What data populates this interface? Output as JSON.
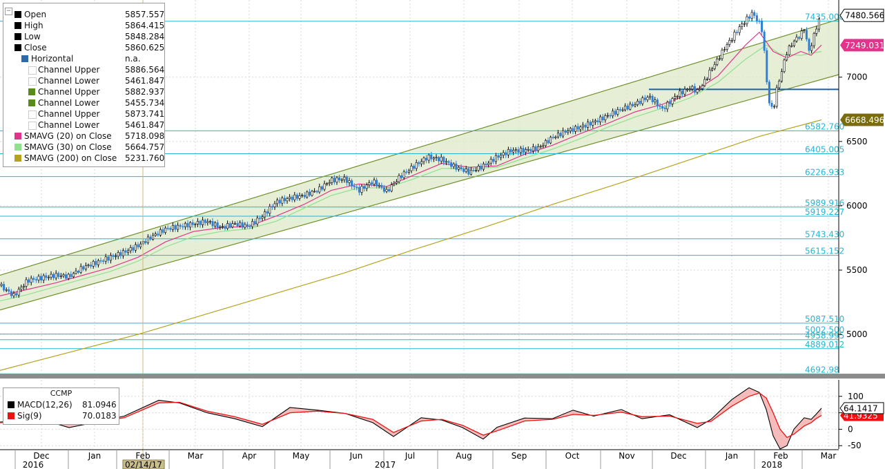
{
  "colors": {
    "price": "#000000",
    "channel_fill": "#dde8c8",
    "channel_line": "#6e8f2a",
    "sma20": "#e0358a",
    "sma30": "#8fe08f",
    "sma200": "#b5a21e",
    "horizontal": "#1f5f9f",
    "level": "#21b6d6",
    "macd": "#000000",
    "signal": "#ee1111",
    "last_price_bg": "#000000",
    "sma20_bg": "#e0358a",
    "sma200_bg": "#7a6b10",
    "signal_bg": "#ee1111"
  },
  "legend": {
    "items": [
      {
        "label": "Open",
        "value": "5857.557",
        "swatch": "#000000"
      },
      {
        "label": "High",
        "value": "5864.415",
        "swatch": "#000000"
      },
      {
        "label": "Low",
        "value": "5848.284",
        "swatch": "#000000"
      },
      {
        "label": "Close",
        "value": "5860.625",
        "swatch": "#000000"
      },
      {
        "label": "Horizontal",
        "value": "n.a.",
        "swatch": "#2f6aa8"
      },
      {
        "label": "Channel Upper",
        "value": "5886.564",
        "swatch": "#ffffff"
      },
      {
        "label": "Channel Lower",
        "value": "5461.847",
        "swatch": "#ffffff"
      },
      {
        "label": "Channel Upper",
        "value": "5882.937",
        "swatch": "#5a8a1a"
      },
      {
        "label": "Channel Lower",
        "value": "5455.734",
        "swatch": "#5a8a1a"
      },
      {
        "label": "Channel Upper",
        "value": "5873.741",
        "swatch": "#ffffff"
      },
      {
        "label": "Channel Lower",
        "value": "5461.847",
        "swatch": "#ffffff"
      },
      {
        "label": "SMAVG (20) on Close",
        "value": "5718.098",
        "swatch": "#e0358a"
      },
      {
        "label": "SMAVG (30) on Close",
        "value": "5664.757",
        "swatch": "#8fe08f"
      },
      {
        "label": "SMAVG (200) on Close",
        "value": "5231.760",
        "swatch": "#b5a21e"
      }
    ]
  },
  "macd_legend": {
    "title": "CCMP",
    "items": [
      {
        "label": "MACD(12,26)",
        "value": "81.0946",
        "swatch": "#000000"
      },
      {
        "label": "Sig(9)",
        "value": "70.0183",
        "swatch": "#ee1111"
      }
    ]
  },
  "cursor_label": "02/14/17",
  "chart_data": [
    {
      "type": "candlestick",
      "title": "",
      "ylim": [
        4700,
        7600
      ],
      "y_ticks": [
        5000,
        5500,
        6000,
        6500,
        7000
      ],
      "x_month_labels": [
        "Dec",
        "Jan",
        "Feb",
        "Mar",
        "Apr",
        "May",
        "Jun",
        "Jul",
        "Aug",
        "Sep",
        "Oct",
        "Nov",
        "Dec",
        "Jan",
        "Feb",
        "Mar"
      ],
      "x_year_labels": [
        "2016",
        "2017",
        "2018"
      ],
      "last_price": "7480.566",
      "sma20_last": "7249.031",
      "sma200_last": "6668.496",
      "horizontal_level": 6905,
      "level_labels": [
        "7435.008",
        "6582.760",
        "6405.005",
        "6226.933",
        "5989.916",
        "5919.227",
        "5743.430",
        "5615.152",
        "5087.510",
        "5002.500",
        "4958.995",
        "4889.012",
        "4692.98"
      ],
      "level_values": [
        7435.008,
        6582.76,
        6405.005,
        6226.933,
        5989.916,
        5919.227,
        5743.43,
        5615.152,
        5087.51,
        5002.5,
        4958.995,
        4889.012,
        4692.98
      ],
      "channel_upper": [
        [
          0,
          5460
        ],
        [
          1215,
          7450
        ]
      ],
      "channel_lower": [
        [
          0,
          5190
        ],
        [
          1215,
          7020
        ]
      ],
      "close_path": [
        [
          0,
          5380
        ],
        [
          20,
          5300
        ],
        [
          40,
          5420
        ],
        [
          60,
          5440
        ],
        [
          80,
          5460
        ],
        [
          100,
          5450
        ],
        [
          120,
          5520
        ],
        [
          140,
          5560
        ],
        [
          160,
          5600
        ],
        [
          180,
          5640
        ],
        [
          200,
          5690
        ],
        [
          220,
          5760
        ],
        [
          240,
          5820
        ],
        [
          260,
          5840
        ],
        [
          280,
          5860
        ],
        [
          300,
          5880
        ],
        [
          320,
          5830
        ],
        [
          340,
          5860
        ],
        [
          360,
          5840
        ],
        [
          380,
          5920
        ],
        [
          400,
          6030
        ],
        [
          420,
          6060
        ],
        [
          440,
          6080
        ],
        [
          460,
          6120
        ],
        [
          480,
          6200
        ],
        [
          500,
          6210
        ],
        [
          510,
          6160
        ],
        [
          520,
          6120
        ],
        [
          540,
          6190
        ],
        [
          560,
          6110
        ],
        [
          580,
          6230
        ],
        [
          600,
          6310
        ],
        [
          620,
          6380
        ],
        [
          640,
          6360
        ],
        [
          660,
          6300
        ],
        [
          680,
          6260
        ],
        [
          700,
          6310
        ],
        [
          720,
          6380
        ],
        [
          740,
          6430
        ],
        [
          760,
          6430
        ],
        [
          780,
          6450
        ],
        [
          800,
          6530
        ],
        [
          820,
          6580
        ],
        [
          840,
          6610
        ],
        [
          860,
          6650
        ],
        [
          880,
          6700
        ],
        [
          900,
          6750
        ],
        [
          920,
          6790
        ],
        [
          940,
          6850
        ],
        [
          960,
          6750
        ],
        [
          980,
          6860
        ],
        [
          1000,
          6920
        ],
        [
          1010,
          6890
        ],
        [
          1020,
          6960
        ],
        [
          1030,
          7060
        ],
        [
          1040,
          7140
        ],
        [
          1050,
          7230
        ],
        [
          1060,
          7300
        ],
        [
          1070,
          7380
        ],
        [
          1080,
          7440
        ],
        [
          1090,
          7500
        ],
        [
          1100,
          7420
        ],
        [
          1105,
          7350
        ],
        [
          1110,
          7000
        ],
        [
          1115,
          6780
        ],
        [
          1120,
          6740
        ],
        [
          1125,
          6900
        ],
        [
          1130,
          7000
        ],
        [
          1140,
          7200
        ],
        [
          1150,
          7280
        ],
        [
          1160,
          7330
        ],
        [
          1165,
          7380
        ],
        [
          1172,
          7200
        ],
        [
          1178,
          7300
        ],
        [
          1185,
          7430
        ],
        [
          1190,
          7480
        ]
      ],
      "sma20_path": [
        [
          0,
          5300
        ],
        [
          40,
          5350
        ],
        [
          80,
          5400
        ],
        [
          120,
          5460
        ],
        [
          160,
          5520
        ],
        [
          200,
          5600
        ],
        [
          240,
          5720
        ],
        [
          280,
          5800
        ],
        [
          320,
          5830
        ],
        [
          360,
          5840
        ],
        [
          400,
          5920
        ],
        [
          440,
          6010
        ],
        [
          480,
          6120
        ],
        [
          520,
          6170
        ],
        [
          560,
          6150
        ],
        [
          600,
          6240
        ],
        [
          640,
          6330
        ],
        [
          680,
          6300
        ],
        [
          720,
          6310
        ],
        [
          760,
          6400
        ],
        [
          800,
          6470
        ],
        [
          840,
          6560
        ],
        [
          880,
          6640
        ],
        [
          920,
          6730
        ],
        [
          960,
          6790
        ],
        [
          1000,
          6870
        ],
        [
          1040,
          7010
        ],
        [
          1080,
          7250
        ],
        [
          1100,
          7350
        ],
        [
          1120,
          7200
        ],
        [
          1140,
          7150
        ],
        [
          1160,
          7200
        ],
        [
          1175,
          7170
        ],
        [
          1190,
          7250
        ]
      ],
      "sma30_path": [
        [
          0,
          5260
        ],
        [
          40,
          5310
        ],
        [
          80,
          5370
        ],
        [
          120,
          5430
        ],
        [
          160,
          5490
        ],
        [
          200,
          5570
        ],
        [
          240,
          5680
        ],
        [
          280,
          5760
        ],
        [
          320,
          5800
        ],
        [
          360,
          5820
        ],
        [
          400,
          5880
        ],
        [
          440,
          5980
        ],
        [
          480,
          6080
        ],
        [
          520,
          6140
        ],
        [
          560,
          6140
        ],
        [
          600,
          6210
        ],
        [
          640,
          6290
        ],
        [
          680,
          6290
        ],
        [
          720,
          6300
        ],
        [
          760,
          6370
        ],
        [
          800,
          6440
        ],
        [
          840,
          6520
        ],
        [
          880,
          6610
        ],
        [
          920,
          6690
        ],
        [
          960,
          6760
        ],
        [
          1000,
          6840
        ],
        [
          1040,
          6960
        ],
        [
          1080,
          7140
        ],
        [
          1110,
          7250
        ],
        [
          1130,
          7180
        ],
        [
          1160,
          7170
        ],
        [
          1190,
          7200
        ]
      ],
      "sma200_path": [
        [
          0,
          4720
        ],
        [
          100,
          4860
        ],
        [
          200,
          5000
        ],
        [
          300,
          5160
        ],
        [
          400,
          5320
        ],
        [
          500,
          5480
        ],
        [
          600,
          5660
        ],
        [
          700,
          5830
        ],
        [
          800,
          6010
        ],
        [
          900,
          6180
        ],
        [
          1000,
          6360
        ],
        [
          1100,
          6540
        ],
        [
          1190,
          6668
        ]
      ]
    },
    {
      "type": "area",
      "title": "CCMP",
      "ylim": [
        -60,
        150
      ],
      "y_ticks": [
        100,
        50,
        0,
        -50
      ],
      "macd_last": "64.1417",
      "signal_last": "41.9325",
      "macd": [
        [
          0,
          22
        ],
        [
          60,
          30
        ],
        [
          100,
          5
        ],
        [
          140,
          22
        ],
        [
          180,
          40
        ],
        [
          230,
          88
        ],
        [
          260,
          80
        ],
        [
          300,
          50
        ],
        [
          340,
          32
        ],
        [
          380,
          8
        ],
        [
          420,
          66
        ],
        [
          460,
          58
        ],
        [
          500,
          48
        ],
        [
          540,
          20
        ],
        [
          570,
          -22
        ],
        [
          610,
          35
        ],
        [
          640,
          28
        ],
        [
          670,
          5
        ],
        [
          700,
          -30
        ],
        [
          720,
          6
        ],
        [
          760,
          34
        ],
        [
          800,
          32
        ],
        [
          830,
          58
        ],
        [
          860,
          40
        ],
        [
          900,
          60
        ],
        [
          930,
          32
        ],
        [
          970,
          44
        ],
        [
          1010,
          5
        ],
        [
          1030,
          30
        ],
        [
          1060,
          90
        ],
        [
          1085,
          126
        ],
        [
          1100,
          112
        ],
        [
          1110,
          60
        ],
        [
          1120,
          -20
        ],
        [
          1130,
          -60
        ],
        [
          1140,
          -50
        ],
        [
          1150,
          0
        ],
        [
          1165,
          35
        ],
        [
          1175,
          30
        ],
        [
          1182,
          45
        ],
        [
          1190,
          64
        ]
      ],
      "signal": [
        [
          0,
          20
        ],
        [
          60,
          25
        ],
        [
          100,
          15
        ],
        [
          140,
          22
        ],
        [
          180,
          35
        ],
        [
          230,
          80
        ],
        [
          260,
          82
        ],
        [
          300,
          55
        ],
        [
          340,
          38
        ],
        [
          380,
          15
        ],
        [
          420,
          50
        ],
        [
          460,
          55
        ],
        [
          500,
          48
        ],
        [
          540,
          30
        ],
        [
          570,
          -10
        ],
        [
          610,
          25
        ],
        [
          640,
          30
        ],
        [
          670,
          12
        ],
        [
          700,
          -18
        ],
        [
          720,
          -5
        ],
        [
          760,
          25
        ],
        [
          800,
          30
        ],
        [
          830,
          45
        ],
        [
          860,
          42
        ],
        [
          900,
          52
        ],
        [
          930,
          38
        ],
        [
          970,
          40
        ],
        [
          1010,
          18
        ],
        [
          1030,
          24
        ],
        [
          1060,
          70
        ],
        [
          1085,
          100
        ],
        [
          1100,
          110
        ],
        [
          1110,
          95
        ],
        [
          1120,
          50
        ],
        [
          1130,
          0
        ],
        [
          1140,
          -25
        ],
        [
          1150,
          -15
        ],
        [
          1165,
          10
        ],
        [
          1175,
          20
        ],
        [
          1182,
          32
        ],
        [
          1190,
          42
        ]
      ]
    }
  ]
}
